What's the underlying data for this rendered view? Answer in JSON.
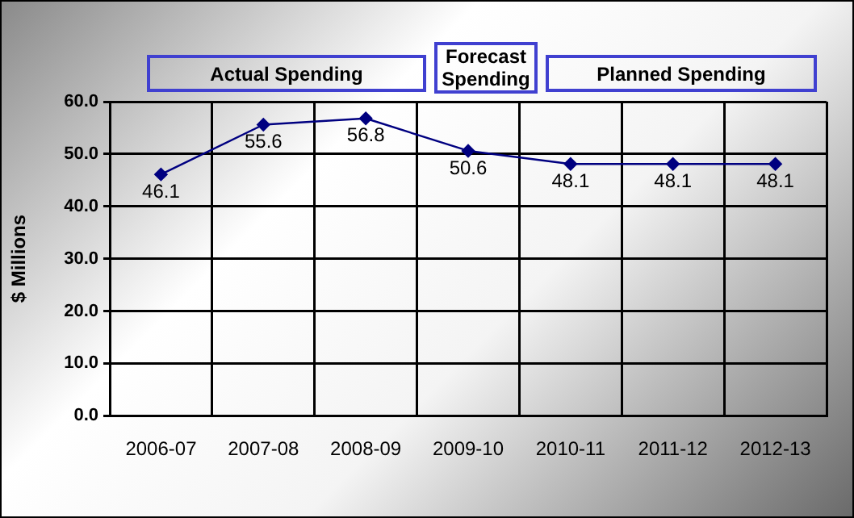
{
  "chart_data": {
    "type": "line",
    "ylabel": "$ Millions",
    "categories": [
      "2006-07",
      "2007-08",
      "2008-09",
      "2009-10",
      "2010-11",
      "2011-12",
      "2012-13"
    ],
    "series": [
      {
        "color": "#000080",
        "values": [
          46.1,
          55.6,
          56.8,
          50.6,
          48.1,
          48.1,
          48.1
        ]
      }
    ],
    "ylim": [
      0,
      60
    ],
    "yticks": [
      {
        "value": 0,
        "label": "0.0"
      },
      {
        "value": 10,
        "label": "10.0"
      },
      {
        "value": 20,
        "label": "20.0"
      },
      {
        "value": 30,
        "label": "30.0"
      },
      {
        "value": 40,
        "label": "40.0"
      },
      {
        "value": 50,
        "label": "50.0"
      },
      {
        "value": 60,
        "label": "60.0"
      }
    ],
    "grid": true,
    "legend": false,
    "marker": "diamond",
    "line_style": "solid",
    "data_labels": true,
    "annotations": [
      "Actual Spending",
      "Forecast Spending",
      "Planned Spending"
    ]
  }
}
